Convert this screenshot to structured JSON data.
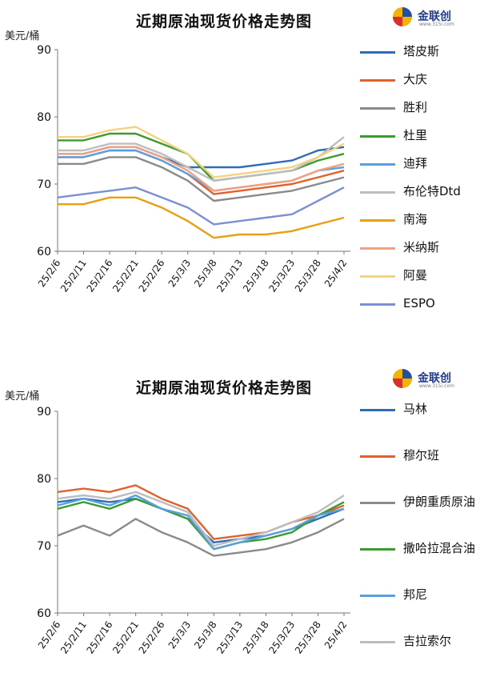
{
  "chart_data": [
    {
      "type": "line",
      "title": "近期原油现货价格走势图",
      "ylabel": "美元/桶",
      "ylim": [
        60,
        90
      ],
      "yticks": [
        60,
        70,
        80,
        90
      ],
      "categories": [
        "25/2/6",
        "25/2/11",
        "25/2/16",
        "25/2/21",
        "25/2/26",
        "25/3/3",
        "25/3/8",
        "25/3/13",
        "25/3/18",
        "25/3/23",
        "25/3/28",
        "25/4/2"
      ],
      "legend": "right",
      "grid": false,
      "series": [
        {
          "name": "塔皮斯",
          "color": "#2e6db5",
          "values": [
            74.5,
            74.5,
            75.5,
            75.5,
            74,
            72.5,
            72.5,
            72.5,
            73,
            73.5,
            75,
            75.5
          ]
        },
        {
          "name": "大庆",
          "color": "#e0622a",
          "values": [
            74,
            74,
            75,
            75,
            73.5,
            71.5,
            68.5,
            69,
            69.5,
            70,
            71,
            72
          ]
        },
        {
          "name": "胜利",
          "color": "#8a8a8a",
          "values": [
            73,
            73,
            74,
            74,
            72.5,
            70.5,
            67.5,
            68,
            68.5,
            69,
            70,
            71
          ]
        },
        {
          "name": "杜里",
          "color": "#3a9b2e",
          "values": [
            76.5,
            76.5,
            77.5,
            77.5,
            76,
            74.5,
            70.5,
            71,
            71.5,
            72,
            73.5,
            74.5
          ]
        },
        {
          "name": "迪拜",
          "color": "#5aa0e0",
          "values": [
            74,
            74,
            75,
            75,
            73.5,
            71.5,
            69,
            69.5,
            70,
            70.5,
            72,
            72.5
          ]
        },
        {
          "name": "布伦特Dtd",
          "color": "#bdbdbd",
          "values": [
            75,
            75,
            76,
            76,
            74.5,
            72.5,
            70.5,
            71,
            71.5,
            72,
            74,
            77
          ]
        },
        {
          "name": "南海",
          "color": "#e8a010",
          "values": [
            67,
            67,
            68,
            68,
            66.5,
            64.5,
            62,
            62.5,
            62.5,
            63,
            64,
            65
          ]
        },
        {
          "name": "米纳斯",
          "color": "#f2a080",
          "values": [
            74.5,
            74.5,
            75.5,
            75.5,
            74,
            72,
            69,
            69.5,
            70,
            70.5,
            72,
            73
          ]
        },
        {
          "name": "阿曼",
          "color": "#f5d280",
          "values": [
            77,
            77,
            78,
            78.5,
            76.5,
            74.5,
            71,
            71.5,
            72,
            72.5,
            74,
            76
          ]
        },
        {
          "name": "ESPO",
          "color": "#7b8fd4",
          "values": [
            68,
            68.5,
            69,
            69.5,
            68,
            66.5,
            64,
            64.5,
            65,
            65.5,
            67.5,
            69.5
          ]
        }
      ]
    },
    {
      "type": "line",
      "title": "近期原油现货价格走势图",
      "ylabel": "美元/桶",
      "ylim": [
        60,
        90
      ],
      "yticks": [
        60,
        70,
        80,
        90
      ],
      "categories": [
        "25/2/6",
        "25/2/11",
        "25/2/16",
        "25/2/21",
        "25/2/26",
        "25/3/3",
        "25/3/8",
        "25/3/13",
        "25/3/18",
        "25/3/23",
        "25/3/28",
        "25/4/2"
      ],
      "legend": "right",
      "grid": false,
      "series": [
        {
          "name": "马林",
          "color": "#2e6db5",
          "values": [
            76.5,
            77,
            76.5,
            77,
            75.5,
            74,
            70.5,
            71,
            71.5,
            72.5,
            74,
            75.5
          ]
        },
        {
          "name": "穆尔班",
          "color": "#e0622a",
          "values": [
            78,
            78.5,
            78,
            79,
            77,
            75.5,
            71,
            71.5,
            72,
            73.5,
            74.5,
            76
          ]
        },
        {
          "name": "伊朗重质原油",
          "color": "#8a8a8a",
          "values": [
            71.5,
            73,
            71.5,
            74,
            72,
            70.5,
            68.5,
            69,
            69.5,
            70.5,
            72,
            74
          ]
        },
        {
          "name": "撒哈拉混合油",
          "color": "#3a9b2e",
          "values": [
            75.5,
            76.5,
            75.5,
            77,
            75.5,
            74,
            69.5,
            70.5,
            71,
            72,
            74.5,
            76.5
          ]
        },
        {
          "name": "邦尼",
          "color": "#5aa0e0",
          "values": [
            76,
            77,
            76,
            77.5,
            75.5,
            74.5,
            69.5,
            70.5,
            71.5,
            72.5,
            74.5,
            75.5
          ]
        },
        {
          "name": "吉拉索尔",
          "color": "#bdbdbd",
          "values": [
            77,
            77.5,
            77,
            78,
            76.5,
            75,
            70,
            71,
            72,
            73.5,
            75,
            77.5
          ]
        }
      ]
    }
  ],
  "logo": {
    "text": "金联创",
    "sub": "www.315i.com"
  }
}
